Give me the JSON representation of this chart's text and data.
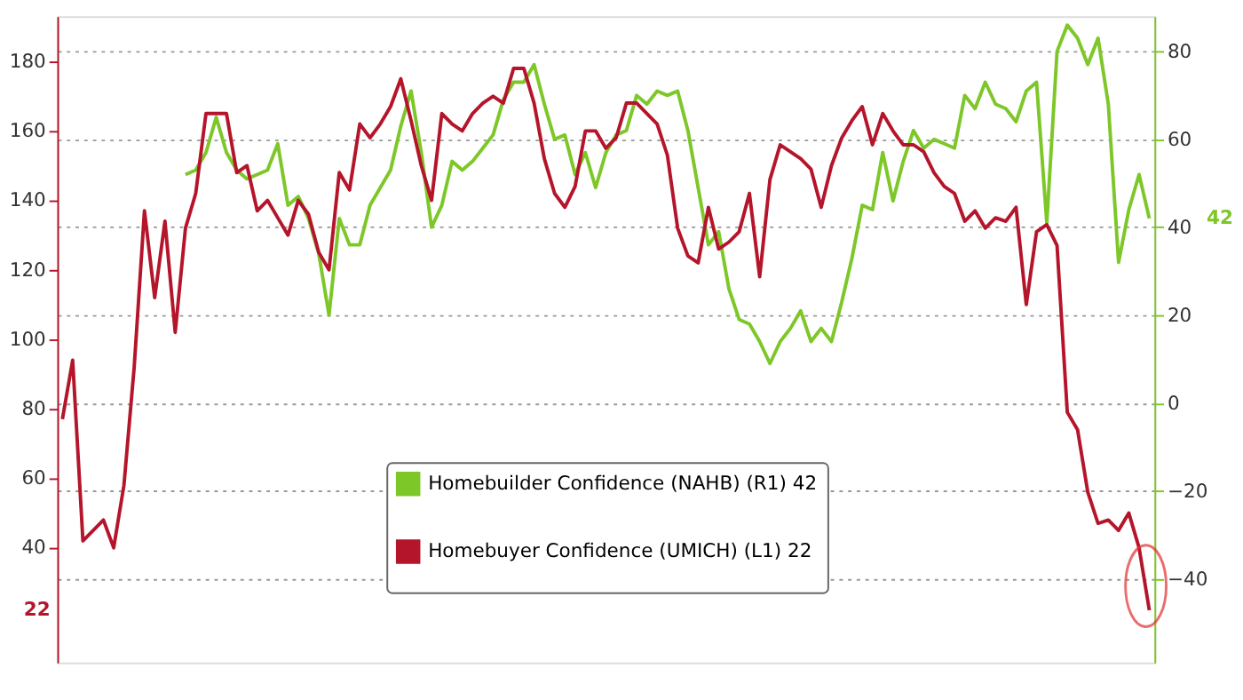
{
  "chart_data": {
    "type": "line",
    "categories": [
      null,
      null,
      null,
      null,
      null,
      null,
      null,
      null,
      null,
      null,
      null,
      null,
      null,
      null,
      null,
      null,
      null,
      null,
      null,
      null,
      null,
      null,
      null,
      null,
      null,
      null,
      null,
      null,
      null,
      null,
      null,
      null,
      null,
      null,
      null,
      null,
      null,
      null,
      null,
      null,
      null,
      null,
      null,
      null,
      null,
      null,
      null,
      null,
      null,
      null,
      null,
      null,
      null,
      null,
      null,
      null,
      null,
      null,
      null,
      null,
      null,
      null,
      null,
      null,
      null,
      null,
      null,
      null,
      null,
      null,
      null,
      null,
      null,
      null,
      null,
      null,
      null,
      null,
      null,
      null,
      null,
      null,
      null,
      null,
      null,
      null,
      null,
      null,
      null,
      null,
      null,
      null,
      null,
      null,
      null,
      null,
      null,
      null,
      null,
      null,
      null,
      null,
      null,
      null,
      null,
      null,
      null
    ],
    "series": [
      {
        "name": "Homebuilder Confidence (NAHB) (R1) 42",
        "color": "#7dc728",
        "axis": "y2",
        "values": [
          null,
          null,
          null,
          null,
          null,
          null,
          null,
          null,
          null,
          null,
          null,
          null,
          52,
          53,
          57,
          65,
          57,
          53,
          51,
          52,
          53,
          59,
          45,
          47,
          42,
          34,
          20,
          42,
          36,
          36,
          45,
          49,
          53,
          63,
          71,
          57,
          40,
          45,
          55,
          53,
          55,
          58,
          61,
          69,
          73,
          73,
          77,
          68,
          60,
          61,
          52,
          57,
          49,
          57,
          61,
          62,
          70,
          68,
          71,
          70,
          71,
          62,
          49,
          36,
          39,
          26,
          19,
          18,
          14,
          9,
          14,
          17,
          21,
          14,
          17,
          14,
          23,
          33,
          45,
          44,
          57,
          46,
          55,
          62,
          58,
          60,
          59,
          58,
          70,
          67,
          73,
          68,
          67,
          64,
          71,
          73,
          41,
          80,
          86,
          83,
          77,
          83,
          68,
          32,
          44,
          52,
          42
        ]
      },
      {
        "name": "Homebuyer Confidence (UMICH) (L1) 22",
        "color": "#b5152b",
        "values": [
          77,
          94,
          42,
          45,
          48,
          40,
          58,
          92,
          137,
          112,
          134,
          102,
          132,
          142,
          165,
          165,
          165,
          148,
          150,
          137,
          140,
          135,
          130,
          140,
          136,
          125,
          120,
          148,
          143,
          162,
          158,
          162,
          167,
          175,
          163,
          150,
          140,
          165,
          162,
          160,
          165,
          168,
          170,
          168,
          178,
          178,
          168,
          152,
          142,
          138,
          144,
          160,
          160,
          155,
          158,
          168,
          168,
          165,
          162,
          153,
          132,
          124,
          122,
          138,
          126,
          128,
          131,
          142,
          118,
          146,
          156,
          154,
          152,
          149,
          138,
          150,
          158,
          163,
          167,
          156,
          165,
          160,
          156,
          156,
          154,
          148,
          144,
          142,
          134,
          137,
          132,
          135,
          134,
          138,
          110,
          131,
          133,
          127,
          79,
          74,
          56,
          47,
          48,
          45,
          50,
          40,
          22
        ]
      }
    ],
    "ylim": [
      7,
      193
    ],
    "yticks": [
      40,
      60,
      80,
      100,
      120,
      140,
      160,
      180
    ],
    "y2lim": [
      -59,
      88
    ],
    "y2ticks": [
      -40,
      -20,
      0,
      20,
      40,
      60,
      80
    ],
    "annotations": [
      "42",
      "22"
    ],
    "grid": true,
    "legend": "bottom",
    "marker": "none",
    "line_style": "solid"
  }
}
